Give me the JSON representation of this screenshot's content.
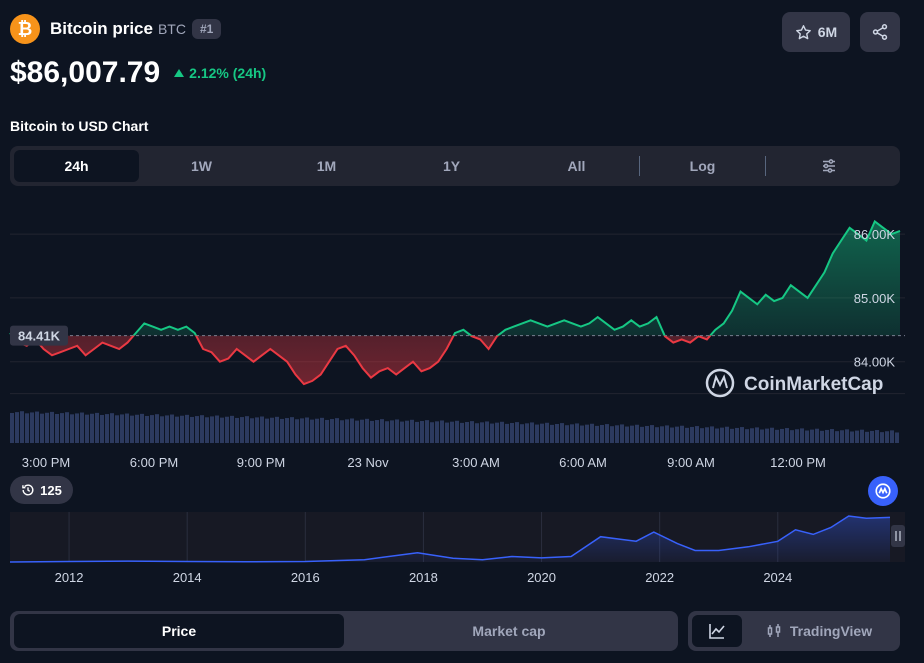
{
  "coin": {
    "logo_symbol": "₿",
    "name": "Bitcoin price",
    "symbol": "BTC",
    "rank": "#1"
  },
  "actions": {
    "watchlist_count": "6M",
    "watch_icon": "star-icon",
    "share_icon": "share-icon"
  },
  "price": {
    "value": "$86,007.79",
    "change": "2.12% (24h)",
    "change_color": "#16c784"
  },
  "chart_title": "Bitcoin to USD Chart",
  "ranges": [
    "24h",
    "1W",
    "1M",
    "1Y",
    "All"
  ],
  "active_range": "24h",
  "log_label": "Log",
  "history": {
    "count": "125"
  },
  "watermark": "CoinMarketCap",
  "bottom": {
    "price_tab": "Price",
    "marketcap_tab": "Market cap",
    "tradingview": "TradingView"
  },
  "colors": {
    "up": "#16c784",
    "down": "#ea3943",
    "accent": "#3861fb",
    "bg": "#0d1421"
  },
  "chart_data": {
    "type": "line",
    "series": [
      {
        "values": [
          84.45,
          84.3,
          84.25,
          84.35,
          84.2,
          84.1,
          84.15,
          84.2,
          84.25,
          84.1,
          84.2,
          84.3,
          84.25,
          84.2,
          84.3,
          84.45,
          84.6,
          84.55,
          84.5,
          84.55,
          84.5,
          84.55,
          84.45,
          84.2,
          84.15,
          84.0,
          84.05,
          84.2,
          84.1,
          84.0,
          84.1,
          84.2,
          84.1,
          84.0,
          83.8,
          83.65,
          83.7,
          83.8,
          84.0,
          84.2,
          84.25,
          84.1,
          83.9,
          83.75,
          83.85,
          83.9,
          83.8,
          83.9,
          84.0,
          83.85,
          83.9,
          84.0,
          84.2,
          84.45,
          84.5,
          84.4,
          84.35,
          84.2,
          84.4,
          84.5,
          84.55,
          84.6,
          84.65,
          84.6,
          84.55,
          84.6,
          84.65,
          84.6,
          84.55,
          84.6,
          84.7,
          84.6,
          84.5,
          84.55,
          84.65,
          84.55,
          84.6,
          84.7,
          84.4,
          84.3,
          84.35,
          84.3,
          84.4,
          84.35,
          84.5,
          84.6,
          84.8,
          85.1,
          85.0,
          84.9,
          85.05,
          84.95,
          85.0,
          85.2,
          85.1,
          85.0,
          85.2,
          85.4,
          85.7,
          85.9,
          86.1,
          86.0,
          85.9,
          86.2,
          86.1,
          86.0,
          86.05
        ],
        "color_above_open": "#16c784",
        "color_below_open": "#ea3943"
      }
    ],
    "x_tick_labels": [
      "3:00 PM",
      "6:00 PM",
      "9:00 PM",
      "23 Nov",
      "3:00 AM",
      "6:00 AM",
      "9:00 AM",
      "12:00 PM"
    ],
    "y_tick_labels": [
      "86.00K",
      "85.00K",
      "84.00K"
    ],
    "ylim": [
      83.4,
      86.3
    ],
    "open_price": 84.41,
    "open_label": "84.41K",
    "grid": true
  },
  "navigator": {
    "type": "area",
    "year_labels": [
      "2012",
      "2014",
      "2016",
      "2018",
      "2020",
      "2022",
      "2024"
    ],
    "years": [
      2011,
      2012,
      2013,
      2014,
      2015,
      2016,
      2017,
      2017.9,
      2018.5,
      2019,
      2019.5,
      2020,
      2020.5,
      2021,
      2021.3,
      2021.6,
      2021.9,
      2022.3,
      2022.6,
      2023,
      2023.5,
      2024,
      2024.3,
      2024.6,
      2024.9,
      2025.2,
      2025.5,
      2025.9
    ],
    "values": [
      0.001,
      0.01,
      0.02,
      0.01,
      0.005,
      0.01,
      0.05,
      0.2,
      0.08,
      0.05,
      0.12,
      0.09,
      0.12,
      0.55,
      0.5,
      0.45,
      0.65,
      0.4,
      0.25,
      0.25,
      0.33,
      0.45,
      0.7,
      0.6,
      0.75,
      1.0,
      0.95,
      0.97
    ]
  }
}
